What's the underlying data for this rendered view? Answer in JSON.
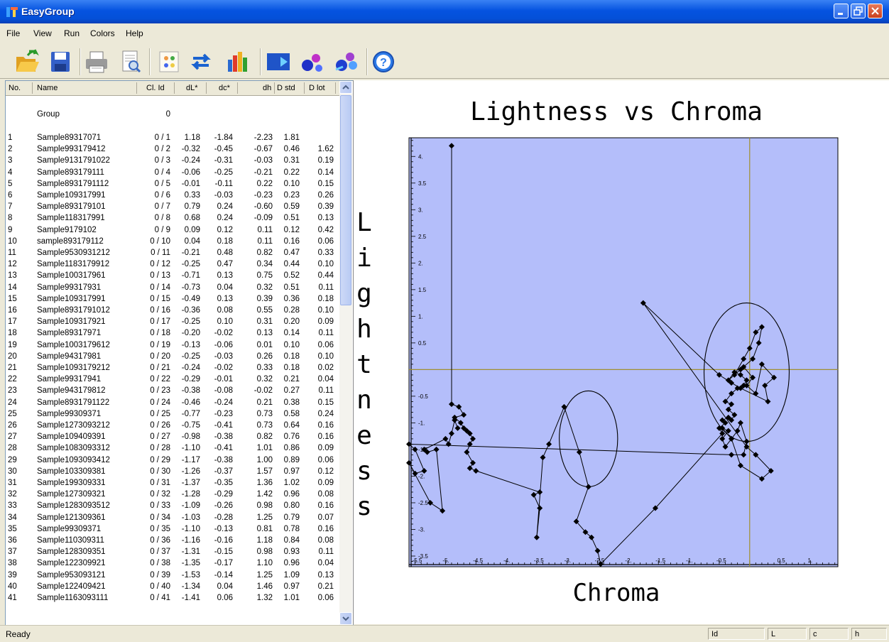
{
  "window": {
    "title": "EasyGroup"
  },
  "menu": [
    "File",
    "View",
    "Run",
    "Colors",
    "Help"
  ],
  "toolbar": {
    "buttons": [
      "open-folder-icon",
      "save-disk-icon",
      "print-icon",
      "print-preview-icon",
      "settings-grid-icon",
      "swap-arrows-icon",
      "bar-chart-icon",
      "blue-arrow-icon",
      "color-blobs-icon",
      "color-blobs-arrow-icon",
      "help-icon"
    ]
  },
  "table": {
    "headers": {
      "no": "No.",
      "name": "Name",
      "cl": "Cl. Id",
      "dl": "dL*",
      "dc": "dc*",
      "dh": "dh",
      "dstd": "D std",
      "dlot": "D lot"
    },
    "group": {
      "name": "Group",
      "cl": "0"
    },
    "rows": [
      [
        "1",
        "Sample89317071",
        "0 / 1",
        "1.18",
        "-1.84",
        "-2.23",
        "1.81",
        ""
      ],
      [
        "2",
        "Sample993179412",
        "0 / 2",
        "-0.32",
        "-0.45",
        "-0.67",
        "0.46",
        "1.62"
      ],
      [
        "3",
        "Sample9131791022",
        "0 / 3",
        "-0.24",
        "-0.31",
        "-0.03",
        "0.31",
        "0.19"
      ],
      [
        "4",
        "Sample893179111",
        "0 / 4",
        "-0.06",
        "-0.25",
        "-0.21",
        "0.22",
        "0.14"
      ],
      [
        "5",
        "Sample8931791112",
        "0 / 5",
        "-0.01",
        "-0.11",
        "0.22",
        "0.10",
        "0.15"
      ],
      [
        "6",
        "Sample109317991",
        "0 / 6",
        "0.33",
        "-0.03",
        "-0.23",
        "0.23",
        "0.26"
      ],
      [
        "7",
        "Sample893179101",
        "0 / 7",
        "0.79",
        "0.24",
        "-0.60",
        "0.59",
        "0.39"
      ],
      [
        "8",
        "Sample118317991",
        "0 / 8",
        "0.68",
        "0.24",
        "-0.09",
        "0.51",
        "0.13"
      ],
      [
        "9",
        "Sample9179102",
        "0 / 9",
        "0.09",
        "0.12",
        "0.11",
        "0.12",
        "0.42"
      ],
      [
        "10",
        "sample893179112",
        "0 / 10",
        "0.04",
        "0.18",
        "0.11",
        "0.16",
        "0.06"
      ],
      [
        "11",
        "Sample9530931212",
        "0 / 11",
        "-0.21",
        "0.48",
        "0.82",
        "0.47",
        "0.33"
      ],
      [
        "12",
        "Sample1183179912",
        "0 / 12",
        "-0.25",
        "0.47",
        "0.34",
        "0.44",
        "0.10"
      ],
      [
        "13",
        "Sample100317961",
        "0 / 13",
        "-0.71",
        "0.13",
        "0.75",
        "0.52",
        "0.44"
      ],
      [
        "14",
        "Sample99317931",
        "0 / 14",
        "-0.73",
        "0.04",
        "0.32",
        "0.51",
        "0.11"
      ],
      [
        "15",
        "Sample109317991",
        "0 / 15",
        "-0.49",
        "0.13",
        "0.39",
        "0.36",
        "0.18"
      ],
      [
        "16",
        "Sample8931791012",
        "0 / 16",
        "-0.36",
        "0.08",
        "0.55",
        "0.28",
        "0.10"
      ],
      [
        "17",
        "Sample109317921",
        "0 / 17",
        "-0.25",
        "0.10",
        "0.31",
        "0.20",
        "0.09"
      ],
      [
        "18",
        "Sample89317971",
        "0 / 18",
        "-0.20",
        "-0.02",
        "0.13",
        "0.14",
        "0.11"
      ],
      [
        "19",
        "Sample1003179612",
        "0 / 19",
        "-0.13",
        "-0.06",
        "0.01",
        "0.10",
        "0.06"
      ],
      [
        "20",
        "Sample94317981",
        "0 / 20",
        "-0.25",
        "-0.03",
        "0.26",
        "0.18",
        "0.10"
      ],
      [
        "21",
        "Sample1093179212",
        "0 / 21",
        "-0.24",
        "-0.02",
        "0.33",
        "0.18",
        "0.02"
      ],
      [
        "22",
        "Sample99317941",
        "0 / 22",
        "-0.29",
        "-0.01",
        "0.32",
        "0.21",
        "0.04"
      ],
      [
        "23",
        "Sample943179812",
        "0 / 23",
        "-0.38",
        "-0.08",
        "-0.02",
        "0.27",
        "0.11"
      ],
      [
        "24",
        "Sample8931791122",
        "0 / 24",
        "-0.46",
        "-0.24",
        "0.21",
        "0.38",
        "0.15"
      ],
      [
        "25",
        "Sample99309371",
        "0 / 25",
        "-0.77",
        "-0.23",
        "0.73",
        "0.58",
        "0.24"
      ],
      [
        "26",
        "Sample1273093212",
        "0 / 26",
        "-0.75",
        "-0.41",
        "0.73",
        "0.64",
        "0.16"
      ],
      [
        "27",
        "Sample109409391",
        "0 / 27",
        "-0.98",
        "-0.38",
        "0.82",
        "0.76",
        "0.16"
      ],
      [
        "28",
        "Sample1083093312",
        "0 / 28",
        "-1.10",
        "-0.41",
        "1.01",
        "0.86",
        "0.09"
      ],
      [
        "29",
        "Sample1093093412",
        "0 / 29",
        "-1.17",
        "-0.38",
        "1.00",
        "0.89",
        "0.06"
      ],
      [
        "30",
        "Sample103309381",
        "0 / 30",
        "-1.26",
        "-0.37",
        "1.57",
        "0.97",
        "0.12"
      ],
      [
        "31",
        "Sample199309331",
        "0 / 31",
        "-1.37",
        "-0.35",
        "1.36",
        "1.02",
        "0.09"
      ],
      [
        "32",
        "Sample127309321",
        "0 / 32",
        "-1.28",
        "-0.29",
        "1.42",
        "0.96",
        "0.08"
      ],
      [
        "33",
        "Sample1283093512",
        "0 / 33",
        "-1.09",
        "-0.26",
        "0.98",
        "0.80",
        "0.16"
      ],
      [
        "34",
        "Sample121309361",
        "0 / 34",
        "-1.03",
        "-0.28",
        "1.25",
        "0.79",
        "0.07"
      ],
      [
        "35",
        "Sample99309371",
        "0 / 35",
        "-1.10",
        "-0.13",
        "0.81",
        "0.78",
        "0.16"
      ],
      [
        "36",
        "Sample110309311",
        "0 / 36",
        "-1.16",
        "-0.16",
        "1.18",
        "0.84",
        "0.08"
      ],
      [
        "37",
        "Sample128309351",
        "0 / 37",
        "-1.31",
        "-0.15",
        "0.98",
        "0.93",
        "0.11"
      ],
      [
        "38",
        "Sample122309921",
        "0 / 38",
        "-1.35",
        "-0.17",
        "1.10",
        "0.96",
        "0.04"
      ],
      [
        "39",
        "Sample953093121",
        "0 / 39",
        "-1.53",
        "-0.14",
        "1.25",
        "1.09",
        "0.13"
      ],
      [
        "40",
        "Sample122409421",
        "0 / 40",
        "-1.34",
        "0.04",
        "1.46",
        "0.97",
        "0.21"
      ],
      [
        "41",
        "Sample1163093111",
        "0 / 41",
        "-1.41",
        "0.06",
        "1.32",
        "1.01",
        "0.06"
      ]
    ]
  },
  "chart_data": {
    "type": "scatter",
    "title": "Lightness vs Chroma",
    "xlabel": "Chroma",
    "ylabel": "Lightness",
    "xlim": [
      -5.6,
      1.45
    ],
    "ylim": [
      -3.7,
      4.35
    ],
    "xticks": [
      "-5.5",
      "-5.",
      "-4.5",
      "-4.",
      "-3.5",
      "-3.",
      "-2.5",
      "-2.",
      "-1.5",
      "-1.",
      "-0.5",
      "0.5",
      "1."
    ],
    "yticks": [
      "4.",
      "3.5",
      "3.",
      "2.5",
      "2.",
      "1.5",
      "1.",
      "0.5",
      "-0.5",
      "-1.",
      "-1.5",
      "-2.",
      "-2.5",
      "-3.",
      "-3.5"
    ],
    "background": "#b4befa",
    "crosshair_color": "#a09030",
    "series": [
      {
        "points": [
          [
            -4.9,
            4.2
          ],
          [
            -4.9,
            -0.65
          ],
          [
            -4.78,
            -0.7
          ],
          [
            -4.7,
            -0.85
          ],
          [
            -4.85,
            -0.9
          ],
          [
            -4.75,
            -1.0
          ],
          [
            -4.7,
            -1.1
          ],
          [
            -4.65,
            -1.15
          ],
          [
            -4.6,
            -1.2
          ],
          [
            -4.55,
            -1.3
          ],
          [
            -4.6,
            -1.4
          ],
          [
            -4.65,
            -1.55
          ],
          [
            -4.55,
            -1.75
          ],
          [
            -4.6,
            -1.85
          ],
          [
            -4.5,
            -1.9
          ],
          [
            -3.45,
            -2.3
          ],
          [
            -3.55,
            -2.35
          ],
          [
            -3.45,
            -2.6
          ],
          [
            -3.5,
            -3.15
          ],
          [
            -3.4,
            -1.65
          ],
          [
            -3.3,
            -1.4
          ],
          [
            -3.05,
            -0.7
          ],
          [
            -2.8,
            -1.55
          ],
          [
            -2.65,
            -2.2
          ],
          [
            -2.85,
            -2.85
          ],
          [
            -2.7,
            -3.05
          ],
          [
            -2.6,
            -3.15
          ],
          [
            -2.5,
            -3.4
          ],
          [
            -2.45,
            -3.65
          ],
          [
            -1.55,
            -2.6
          ],
          [
            -0.45,
            -1.2
          ],
          [
            -0.5,
            -1.1
          ],
          [
            -0.4,
            -1.0
          ],
          [
            -0.45,
            -0.95
          ],
          [
            -0.35,
            -0.9
          ],
          [
            -0.3,
            -0.95
          ],
          [
            -0.25,
            -0.85
          ],
          [
            -0.35,
            -0.75
          ],
          [
            -0.3,
            -0.65
          ],
          [
            -0.4,
            -0.6
          ],
          [
            -0.3,
            -0.45
          ],
          [
            -0.2,
            -0.35
          ],
          [
            -0.1,
            -0.3
          ],
          [
            -0.05,
            -0.2
          ],
          [
            -0.15,
            -0.1
          ],
          [
            -0.25,
            -0.05
          ],
          [
            -0.35,
            -0.2
          ],
          [
            -0.15,
            0.0
          ],
          [
            0.05,
            0.2
          ],
          [
            0.15,
            0.5
          ],
          [
            0.2,
            0.8
          ],
          [
            0.1,
            0.7
          ],
          [
            0.0,
            0.4
          ],
          [
            -0.1,
            0.2
          ],
          [
            -0.25,
            -0.1
          ],
          [
            -0.1,
            0.05
          ],
          [
            0.05,
            -0.15
          ],
          [
            -0.05,
            -0.3
          ],
          [
            0.1,
            -0.45
          ],
          [
            0.2,
            0.1
          ],
          [
            0.4,
            -0.15
          ],
          [
            0.25,
            -0.3
          ],
          [
            0.3,
            -0.6
          ],
          [
            -0.15,
            -0.35
          ],
          [
            -0.3,
            -0.25
          ],
          [
            -0.5,
            -0.1
          ],
          [
            -1.75,
            1.25
          ],
          [
            -0.05,
            -1.45
          ],
          [
            0.1,
            -1.6
          ],
          [
            0.35,
            -1.9
          ],
          [
            0.2,
            -2.05
          ],
          [
            -0.15,
            -1.8
          ],
          [
            -0.3,
            -1.3
          ],
          [
            -0.45,
            -1.1
          ],
          [
            -0.35,
            -1.15
          ],
          [
            -0.45,
            -1.3
          ],
          [
            -0.4,
            -1.45
          ],
          [
            -0.3,
            -1.3
          ],
          [
            -0.2,
            -1.15
          ],
          [
            -0.15,
            -1.0
          ],
          [
            -0.05,
            -1.35
          ],
          [
            -0.1,
            -1.6
          ],
          [
            -0.3,
            -1.6
          ],
          [
            -5.6,
            -1.4
          ],
          [
            -5.5,
            -1.5
          ],
          [
            -5.35,
            -1.9
          ],
          [
            -5.5,
            -1.95
          ],
          [
            -5.6,
            -1.75
          ],
          [
            -5.25,
            -2.5
          ],
          [
            -5.05,
            -2.65
          ],
          [
            -5.15,
            -1.5
          ],
          [
            -5.3,
            -1.55
          ],
          [
            -5.35,
            -1.5
          ],
          [
            -5.0,
            -1.3
          ],
          [
            -4.95,
            -1.4
          ],
          [
            -4.9,
            -1.2
          ],
          [
            -4.85,
            -0.95
          ],
          [
            -4.8,
            -1.1
          ]
        ]
      }
    ],
    "ellipses": [
      {
        "cx": -2.65,
        "cy": -1.3,
        "rx": 0.48,
        "ry": 0.9
      },
      {
        "cx": -0.05,
        "cy": -0.05,
        "rx": 0.7,
        "ry": 1.3
      }
    ]
  },
  "status": {
    "ready": "Ready",
    "panes": [
      "Id",
      "L",
      "c",
      "h"
    ]
  }
}
